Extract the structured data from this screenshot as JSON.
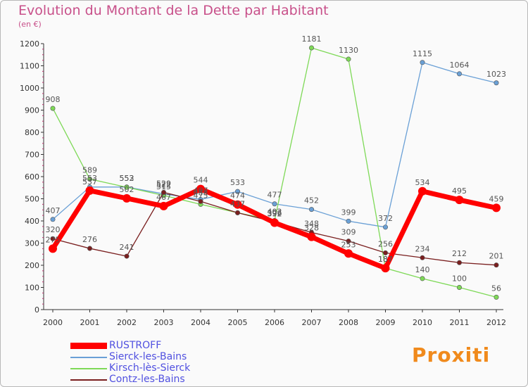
{
  "title": "Evolution du Montant de la Dette par Habitant",
  "subtitle": "(en €)",
  "brand": "Proxiti",
  "chart_data": {
    "type": "line",
    "title": "Evolution du Montant de la Dette par Habitant",
    "ylabel": "(en €)",
    "ylim": [
      0,
      1200
    ],
    "yticks": [
      0,
      100,
      200,
      300,
      400,
      500,
      600,
      700,
      800,
      900,
      1000,
      1100,
      1200
    ],
    "x": [
      "2000",
      "2001",
      "2002",
      "2003",
      "2004",
      "2005",
      "2006",
      "2007",
      "2008",
      "2009",
      "2010",
      "2011",
      "2012"
    ],
    "grid": false,
    "legend_position": "bottom-left",
    "series": [
      {
        "name": "RUSTROFF",
        "color": "#ff0000",
        "values": [
          275,
          537,
          502,
          467,
          544,
          474,
          392,
          328,
          253,
          187,
          534,
          495,
          459
        ]
      },
      {
        "name": "Sierck-les-Bains",
        "color": "#6aa0d6",
        "values": [
          407,
          553,
          553,
          522,
          497,
          533,
          477,
          452,
          399,
          372,
          1115,
          1064,
          1023
        ]
      },
      {
        "name": "Kirsch-lès-Sierck",
        "color": "#7ed957",
        "values": [
          908,
          589,
          552,
          515,
          475,
          437,
          402,
          1181,
          1130,
          187,
          140,
          100,
          56
        ]
      },
      {
        "name": "Contz-les-Bains",
        "color": "#7a1f1f",
        "values": [
          320,
          276,
          241,
          529,
          488,
          437,
          396,
          348,
          309,
          256,
          234,
          212,
          201
        ]
      }
    ],
    "data_labels": [
      {
        "series": 1,
        "values": [
          "407",
          "553",
          "553",
          "522",
          "497",
          "533",
          "477",
          "452",
          "399",
          "372",
          "1115",
          "1064",
          "1023"
        ]
      },
      {
        "series": 2,
        "values": [
          "908",
          "589",
          "552",
          "515",
          "475",
          "437",
          "402",
          "1181",
          "1130",
          "187",
          "140",
          "100",
          "56"
        ]
      },
      {
        "series": 3,
        "values": [
          "320",
          "276",
          "241",
          "529",
          "488",
          "437",
          "396",
          "348",
          "309",
          "256",
          "234",
          "212",
          "201"
        ]
      },
      {
        "series": 0,
        "values": [
          "275",
          "537",
          "502",
          "467",
          "544",
          "474",
          "392",
          "328",
          "253",
          "187",
          "534",
          "495",
          "459"
        ]
      }
    ]
  },
  "legend": [
    {
      "name": "RUSTROFF",
      "color": "#ff0000"
    },
    {
      "name": "Sierck-les-Bains",
      "color": "#6aa0d6"
    },
    {
      "name": "Kirsch-lès-Sierck",
      "color": "#7ed957"
    },
    {
      "name": "Contz-les-Bains",
      "color": "#7a1f1f"
    }
  ]
}
